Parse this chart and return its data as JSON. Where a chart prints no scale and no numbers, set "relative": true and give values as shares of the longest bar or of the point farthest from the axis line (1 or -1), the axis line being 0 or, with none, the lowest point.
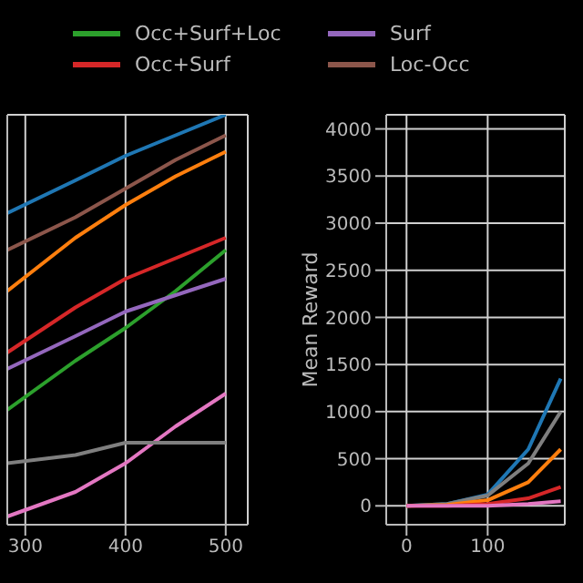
{
  "chart_data": [
    {
      "type": "line",
      "relative": true,
      "legend": "top",
      "grid": true,
      "tick_labels": "x",
      "xlim": [
        282,
        522
      ],
      "xticks": [
        300,
        400,
        500
      ],
      "series": [
        {
          "color": "#1f77b4",
          "x": [
            282,
            350,
            400,
            450,
            500
          ],
          "values": [
            0.76,
            0.84,
            0.9,
            0.95,
            1.0
          ]
        },
        {
          "color": "#ff7f0e",
          "x": [
            282,
            350,
            400,
            450,
            500
          ],
          "values": [
            0.57,
            0.7,
            0.78,
            0.85,
            0.91
          ]
        },
        {
          "name": "Occ+Surf+Loc",
          "color": "#2ca02c",
          "x": [
            282,
            350,
            400,
            450,
            500
          ],
          "values": [
            0.28,
            0.4,
            0.48,
            0.57,
            0.67
          ]
        },
        {
          "name": "Occ+Surf",
          "color": "#d62728",
          "x": [
            282,
            350,
            400,
            450,
            500
          ],
          "values": [
            0.42,
            0.53,
            0.6,
            0.65,
            0.7
          ]
        },
        {
          "name": "Surf",
          "color": "#9467bd",
          "x": [
            282,
            350,
            400,
            450,
            500
          ],
          "values": [
            0.38,
            0.46,
            0.52,
            0.56,
            0.6
          ]
        },
        {
          "name": "Loc-Occ",
          "color": "#8c564b",
          "x": [
            282,
            350,
            400,
            450,
            500
          ],
          "values": [
            0.67,
            0.75,
            0.82,
            0.89,
            0.95
          ]
        },
        {
          "color": "#e377c2",
          "x": [
            282,
            350,
            400,
            450,
            500
          ],
          "values": [
            0.02,
            0.08,
            0.15,
            0.24,
            0.32
          ]
        },
        {
          "color": "#7f7f7f",
          "x": [
            282,
            350,
            400,
            450,
            500
          ],
          "values": [
            0.15,
            0.17,
            0.2,
            0.2,
            0.2
          ]
        }
      ]
    },
    {
      "type": "line",
      "ylabel": "Mean Reward",
      "grid": true,
      "xlim": [
        -25,
        195
      ],
      "xticks": [
        0,
        100
      ],
      "ylim": [
        -200,
        4150
      ],
      "yticks": [
        0,
        500,
        1000,
        1500,
        2000,
        2500,
        3000,
        3500,
        4000
      ],
      "series": [
        {
          "color": "#1f77b4",
          "x": [
            0,
            50,
            100,
            150,
            190
          ],
          "values": [
            0,
            20,
            120,
            600,
            1350
          ]
        },
        {
          "color": "#7f7f7f",
          "x": [
            0,
            50,
            100,
            150,
            190
          ],
          "values": [
            0,
            20,
            110,
            450,
            1000
          ]
        },
        {
          "color": "#ff7f0e",
          "x": [
            0,
            50,
            100,
            150,
            190
          ],
          "values": [
            0,
            10,
            60,
            250,
            600
          ]
        },
        {
          "color": "#d62728",
          "x": [
            0,
            50,
            100,
            150,
            190
          ],
          "values": [
            0,
            0,
            20,
            80,
            200
          ]
        },
        {
          "color": "#e377c2",
          "x": [
            0,
            50,
            100,
            150,
            190
          ],
          "values": [
            0,
            0,
            0,
            20,
            50
          ]
        }
      ]
    }
  ]
}
